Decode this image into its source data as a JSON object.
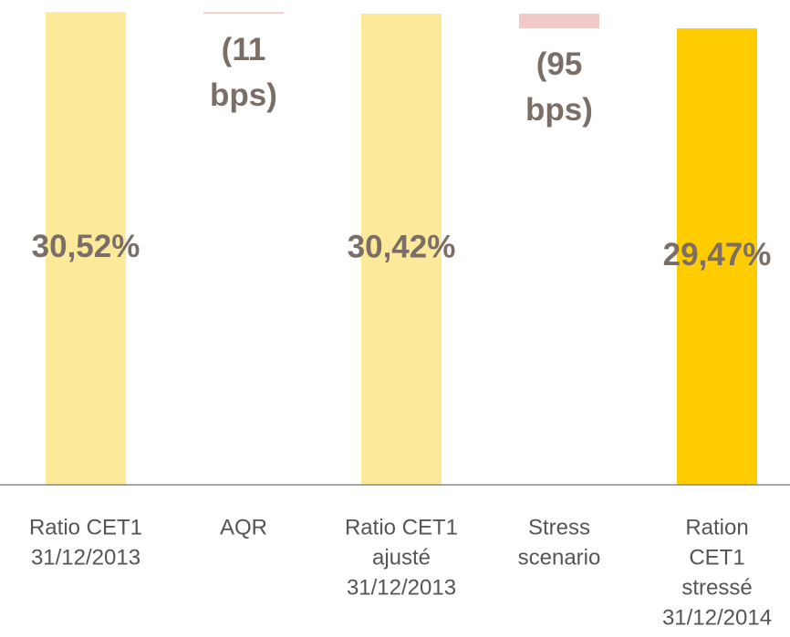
{
  "chart_data": {
    "type": "waterfall",
    "categories": [
      [
        "Ratio CET1",
        "31/12/2013"
      ],
      [
        "AQR"
      ],
      [
        "Ratio CET1",
        "ajusté",
        "31/12/2013"
      ],
      [
        "Stress",
        "scenario"
      ],
      [
        "Ration",
        "CET1",
        "stressé",
        "31/12/2014"
      ]
    ],
    "values": [
      30.52,
      -0.11,
      30.42,
      -0.95,
      29.47
    ],
    "value_labels": [
      "30,52%",
      "(11 bps)",
      "30,42%",
      "(95 bps)",
      "29,47%"
    ],
    "measure": [
      "total",
      "relative",
      "total",
      "relative",
      "total"
    ],
    "colors": [
      "#fde99a",
      "#f2c9c9",
      "#fde99a",
      "#f2c9c9",
      "#ffcc00"
    ],
    "ylim": [
      0,
      31.3
    ]
  }
}
